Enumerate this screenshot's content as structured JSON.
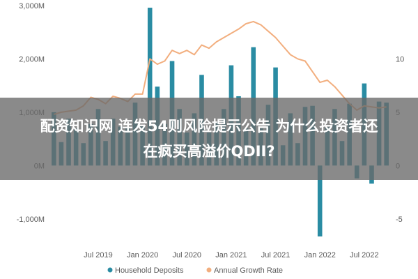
{
  "chart_data": {
    "type": "bar",
    "series": [
      {
        "name": "Household Deposits",
        "type": "bar",
        "axis": "left",
        "color": "#2a8ca3",
        "x": [
          "2019-01",
          "2019-02",
          "2019-03",
          "2019-04",
          "2019-05",
          "2019-06",
          "2019-07",
          "2019-08",
          "2019-09",
          "2019-10",
          "2019-11",
          "2019-12",
          "2020-01",
          "2020-02",
          "2020-03",
          "2020-04",
          "2020-05",
          "2020-06",
          "2020-07",
          "2020-08",
          "2020-09",
          "2020-10",
          "2020-11",
          "2020-12",
          "2021-01",
          "2021-02",
          "2021-03",
          "2021-04",
          "2021-05",
          "2021-06",
          "2021-07",
          "2021-08",
          "2021-09",
          "2021-10",
          "2021-11",
          "2021-12",
          "2022-01",
          "2022-02",
          "2022-03",
          "2022-04",
          "2022-05",
          "2022-06",
          "2022-07",
          "2022-08",
          "2022-09",
          "2022-10"
        ],
        "values": [
          1000,
          440,
          880,
          700,
          420,
          780,
          1060,
          460,
          880,
          730,
          720,
          1180,
          740,
          2960,
          1480,
          780,
          1960,
          1060,
          620,
          980,
          1700,
          620,
          820,
          1060,
          1880,
          1300,
          700,
          2220,
          700,
          1140,
          1840,
          380,
          980,
          420,
          1100,
          1120,
          -1330,
          720,
          1060,
          460,
          1160,
          -240,
          1540,
          -340,
          1200,
          1180
        ]
      },
      {
        "name": "Annual Growth Rate",
        "type": "line",
        "axis": "right",
        "color": "#f2ae7e",
        "x": [
          "2019-01",
          "2019-02",
          "2019-03",
          "2019-04",
          "2019-05",
          "2019-06",
          "2019-07",
          "2019-08",
          "2019-09",
          "2019-10",
          "2019-11",
          "2019-12",
          "2020-01",
          "2020-02",
          "2020-03",
          "2020-04",
          "2020-05",
          "2020-06",
          "2020-07",
          "2020-08",
          "2020-09",
          "2020-10",
          "2020-11",
          "2020-12",
          "2021-01",
          "2021-02",
          "2021-03",
          "2021-04",
          "2021-05",
          "2021-06",
          "2021-07",
          "2021-08",
          "2021-09",
          "2021-10",
          "2021-11",
          "2021-12",
          "2022-01",
          "2022-02",
          "2022-03",
          "2022-04",
          "2022-05",
          "2022-06",
          "2022-07",
          "2022-08",
          "2022-09",
          "2022-10"
        ],
        "values": [
          4.8,
          5.0,
          5.1,
          5.2,
          5.6,
          6.4,
          6.2,
          5.8,
          6.5,
          6.3,
          6.0,
          6.7,
          6.7,
          10.0,
          9.5,
          9.8,
          10.8,
          10.5,
          10.8,
          10.4,
          11.3,
          11.0,
          11.6,
          12.0,
          12.4,
          12.8,
          13.3,
          13.5,
          13.2,
          12.6,
          12.0,
          11.2,
          10.4,
          10.0,
          9.8,
          8.8,
          7.8,
          8.0,
          7.4,
          6.6,
          5.8,
          5.2,
          5.6,
          5.5,
          5.4,
          5.5
        ]
      }
    ],
    "y_left": {
      "ticks": [
        "-1,000M",
        "0M",
        "1,000M",
        "2,000M",
        "3,000M"
      ],
      "tick_values": [
        -1000,
        0,
        1000,
        2000,
        3000
      ],
      "range": [
        -1500,
        3000
      ]
    },
    "y_right": {
      "ticks": [
        "-5",
        "0",
        "5",
        "10"
      ],
      "tick_values": [
        -5,
        0,
        5,
        10
      ],
      "range": [
        -7.5,
        15
      ]
    },
    "x_ticks": [
      {
        "label": "Jul 2019",
        "x": "2019-07"
      },
      {
        "label": "Jan 2020",
        "x": "2020-01"
      },
      {
        "label": "Jul 2020",
        "x": "2020-07"
      },
      {
        "label": "Jan 2021",
        "x": "2021-01"
      },
      {
        "label": "Jul 2021",
        "x": "2021-07"
      },
      {
        "label": "Jan 2022",
        "x": "2022-01"
      },
      {
        "label": "Jul 2022",
        "x": "2022-07"
      }
    ],
    "legend": [
      {
        "label": "Household Deposits",
        "marker": "dot",
        "color": "#2a8ca3"
      },
      {
        "label": "Annual Growth Rate",
        "marker": "dot",
        "color": "#f2ae7e"
      }
    ],
    "legend_position": "bottom-center",
    "grid": false
  },
  "overlay": {
    "line1": "配资知识网 连发54则风险提示公告 为什么投资者还",
    "line2": "在疯买高溢价QDII?"
  }
}
